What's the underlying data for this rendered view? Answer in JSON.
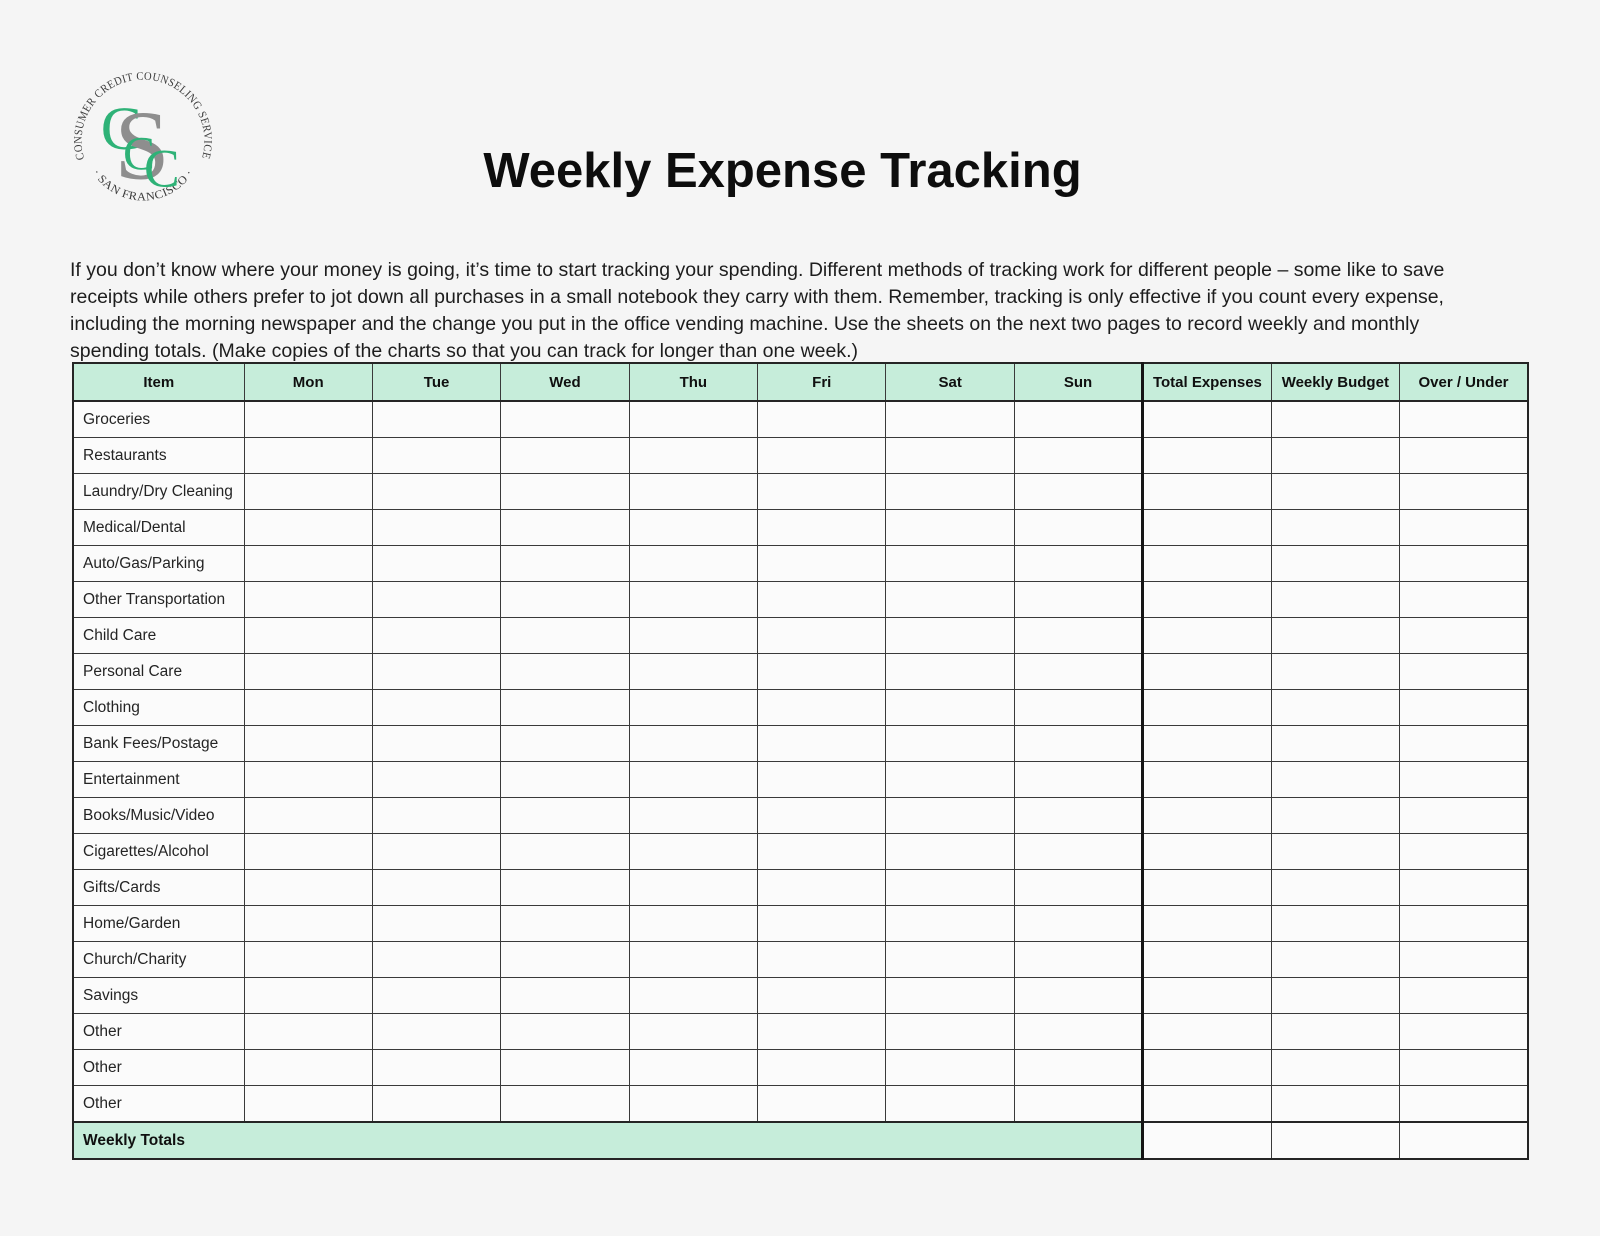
{
  "logo": {
    "ring_top": "CONSUMER CREDIT COUNSELING SERVICE",
    "ring_bottom": "· SAN FRANCISCO ·",
    "monogram": [
      "C",
      "S",
      "C",
      "C"
    ],
    "green": "#2eb277",
    "gray": "#8e8e8e",
    "ring_text_color": "#3d3d3d"
  },
  "page": {
    "title": "Weekly Expense Tracking",
    "intro": "If you don’t know where your money is going, it’s time to start tracking your spending. Different methods of tracking work for different people – some like to save receipts while others prefer to jot down all purchases in a small notebook they carry with them. Remember, tracking is only effective if you count every expense, including the morning newspaper and the change you put in the office vending machine. Use the sheets on the next two pages to record weekly and monthly spending totals. (Make copies of the charts so that you can track for longer than one week.)",
    "background": "#f5f5f5"
  },
  "table": {
    "header_bg": "#c6edda",
    "columns": [
      "Item",
      "Mon",
      "Tue",
      "Wed",
      "Thu",
      "Fri",
      "Sat",
      "Sun",
      "Total Expenses",
      "Weekly Budget",
      "Over / Under"
    ],
    "rows": [
      "Groceries",
      "Restaurants",
      "Laundry/Dry Cleaning",
      "Medical/Dental",
      "Auto/Gas/Parking",
      "Other Transportation",
      "Child Care",
      "Personal Care",
      "Clothing",
      "Bank Fees/Postage",
      "Entertainment",
      "Books/Music/Video",
      "Cigarettes/Alcohol",
      "Gifts/Cards",
      "Home/Garden",
      "Church/Charity",
      "Savings",
      "Other",
      "Other",
      "Other"
    ],
    "footer_label": "Weekly Totals",
    "cell_values": ""
  }
}
